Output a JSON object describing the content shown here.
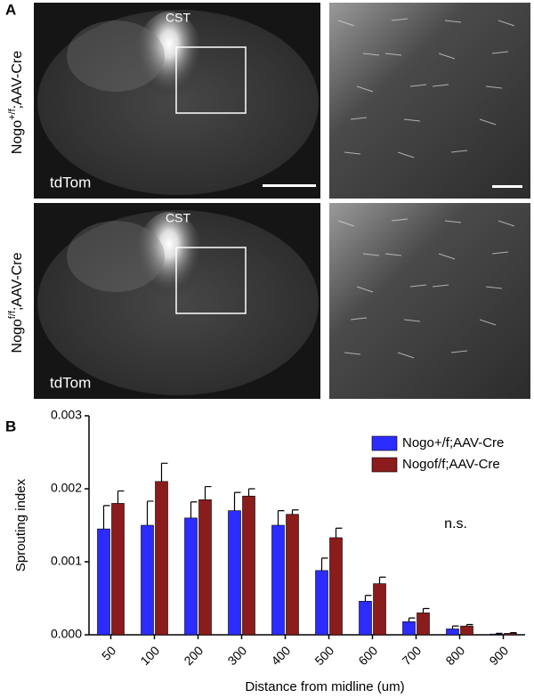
{
  "panel_a": {
    "label": "A",
    "rows": [
      {
        "label": {
          "prefix": "Nogo",
          "sup": "+/f",
          "suffix": ";AAV-Cre"
        },
        "tract": "CST",
        "stain": "tdTom"
      },
      {
        "label": {
          "prefix": "Nogo",
          "sup": "f/f",
          "suffix": ";AAV-Cre"
        },
        "tract": "CST",
        "stain": "tdTom"
      }
    ]
  },
  "chart_data": {
    "type": "bar",
    "panel_label": "B",
    "y_label": "Sprouting index",
    "x_label": "Distance from midline (um)",
    "annotation": "n.s.",
    "categories": [
      "50",
      "100",
      "200",
      "300",
      "400",
      "500",
      "600",
      "700",
      "800",
      "900"
    ],
    "series": [
      {
        "name": "Nogo+/f;AAV-Cre",
        "color": "#2c2cff",
        "values": [
          0.00145,
          0.0015,
          0.0016,
          0.0017,
          0.0015,
          0.00088,
          0.00046,
          0.00018,
          8e-05,
          1e-05
        ],
        "errors": [
          0.00032,
          0.00033,
          0.00022,
          0.00025,
          0.0002,
          0.00017,
          8e-05,
          5e-05,
          4e-05,
          1e-05
        ]
      },
      {
        "name": "Nogof/f;AAV-Cre",
        "color": "#8b1c1c",
        "values": [
          0.0018,
          0.0021,
          0.00185,
          0.0019,
          0.00165,
          0.00133,
          0.0007,
          0.0003,
          0.00012,
          2e-05
        ],
        "errors": [
          0.00017,
          0.00025,
          0.00018,
          0.0001,
          6e-05,
          0.00013,
          9e-05,
          6e-05,
          2e-05,
          1e-05
        ]
      }
    ],
    "ylim": [
      0,
      0.003
    ],
    "yticks": [
      {
        "value": 0,
        "label": "0.000"
      },
      0.001,
      0.002,
      0.003
    ],
    "legend": "upper right"
  }
}
